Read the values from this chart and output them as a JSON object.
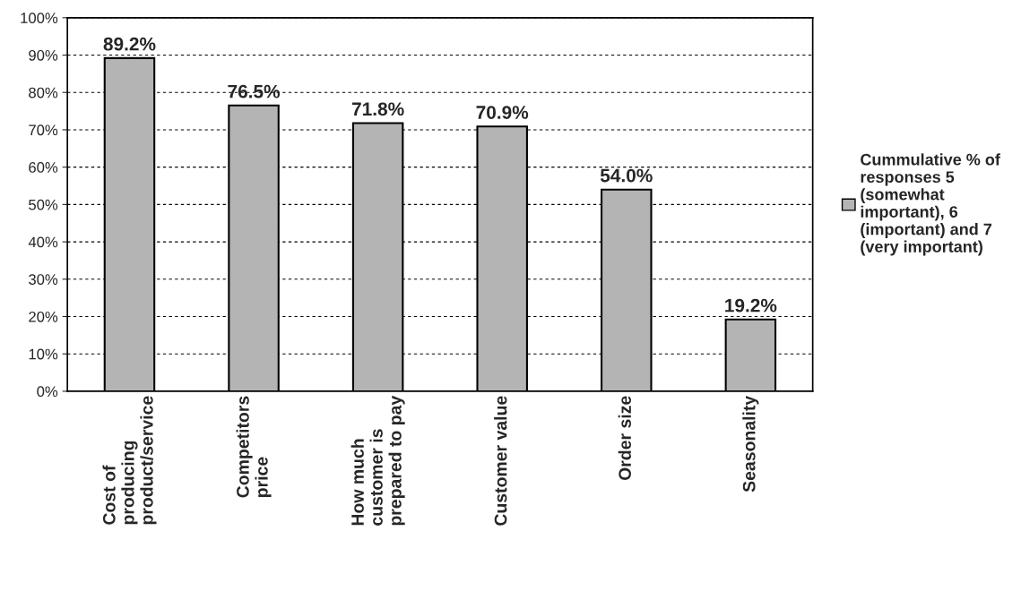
{
  "chart_data": {
    "type": "bar",
    "categories": [
      "Cost of\nproducing\nproduct/service",
      "Competitors\nprice",
      "How much\ncustomer is\nprepared to pay",
      "Customer value",
      "Order size",
      "Seasonality"
    ],
    "series": [
      {
        "name": "Cummulative % of\nresponses 5\n(somewhat\nimportant), 6\n(important) and 7\n(very important)",
        "color": "#b4b4b4",
        "values": [
          89.2,
          76.5,
          71.8,
          70.9,
          54.0,
          19.2
        ],
        "value_labels": [
          "89.2%",
          "76.5%",
          "71.8%",
          "70.9%",
          "54.0%",
          "19.2%"
        ]
      }
    ],
    "ylim": [
      0,
      100
    ],
    "yticks": [
      {
        "value": 0,
        "label": "0%"
      },
      {
        "value": 10,
        "label": "10%"
      },
      {
        "value": 20,
        "label": "20%"
      },
      {
        "value": 30,
        "label": "30%"
      },
      {
        "value": 40,
        "label": "40%"
      },
      {
        "value": 50,
        "label": "50%"
      },
      {
        "value": 60,
        "label": "60%"
      },
      {
        "value": 70,
        "label": "70%"
      },
      {
        "value": 80,
        "label": "80%"
      },
      {
        "value": 90,
        "label": "90%"
      },
      {
        "value": 100,
        "label": "100%"
      }
    ],
    "grid": "y",
    "legend": "right"
  }
}
